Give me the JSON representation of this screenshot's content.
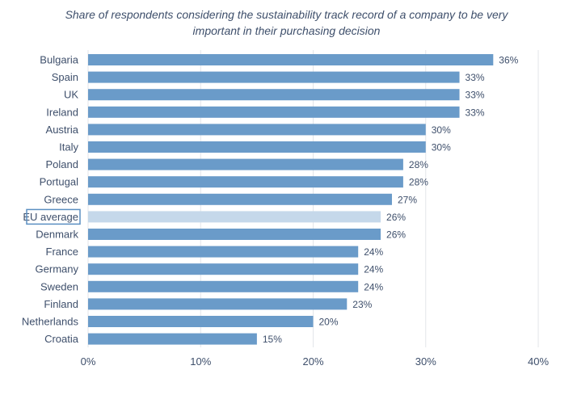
{
  "chart_data": {
    "type": "bar",
    "orientation": "horizontal",
    "title_lines": [
      "Share of respondents considering the sustainability track record of a company to be very",
      "important in their purchasing decision"
    ],
    "categories": [
      "Bulgaria",
      "Spain",
      "UK",
      "Ireland",
      "Austria",
      "Italy",
      "Poland",
      "Portugal",
      "Greece",
      "EU average",
      "Denmark",
      "France",
      "Germany",
      "Sweden",
      "Finland",
      "Netherlands",
      "Croatia"
    ],
    "values": [
      36,
      33,
      33,
      33,
      30,
      30,
      28,
      28,
      27,
      26,
      26,
      24,
      24,
      24,
      23,
      20,
      15
    ],
    "value_labels": [
      "36%",
      "33%",
      "33%",
      "33%",
      "30%",
      "30%",
      "28%",
      "28%",
      "27%",
      "26%",
      "26%",
      "24%",
      "24%",
      "24%",
      "23%",
      "20%",
      "15%"
    ],
    "highlight_category": "EU average",
    "xlim": [
      0,
      40
    ],
    "x_ticks": [
      0,
      10,
      20,
      30,
      40
    ],
    "x_tick_labels": [
      "0%",
      "10%",
      "20%",
      "30%",
      "40%"
    ],
    "grid": true,
    "legend": "none",
    "xlabel": "",
    "ylabel": ""
  },
  "colors": {
    "bar": "#6a9bc9",
    "highlight_bar": "#c5d8ea",
    "highlight_border": "#5b8fc2",
    "grid": "#e3e6ea",
    "text": "#3e4f6b"
  }
}
